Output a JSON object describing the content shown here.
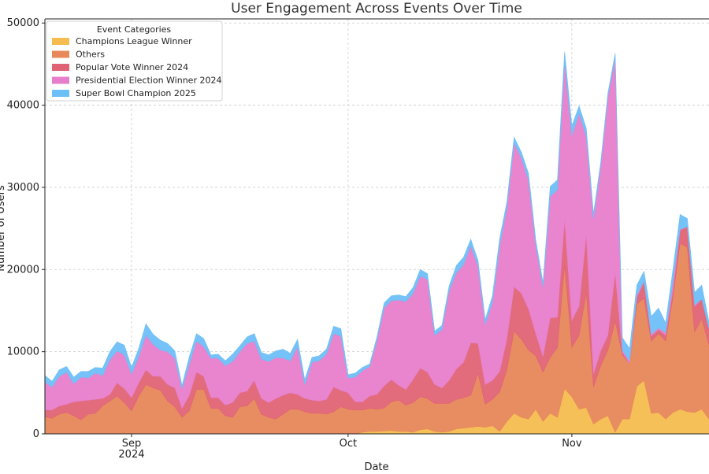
{
  "chart_data": {
    "type": "area",
    "stacked": true,
    "title": "User Engagement Across Events Over Time",
    "xlabel": "Date",
    "ylabel": "Number of Users",
    "x_start": "2024-08-20",
    "x_end": "2024-11-20",
    "x_ticks": [
      {
        "date": "2024-09-01",
        "label": "Sep",
        "sublabel": "2024"
      },
      {
        "date": "2024-10-01",
        "label": "Oct",
        "sublabel": ""
      },
      {
        "date": "2024-11-01",
        "label": "Nov",
        "sublabel": ""
      }
    ],
    "ylim": [
      0,
      50500
    ],
    "y_ticks": [
      0,
      10000,
      20000,
      30000,
      40000,
      50000
    ],
    "y_tick_labels": [
      "0",
      "10000",
      "20000",
      "30000",
      "40000",
      "50000"
    ],
    "grid": true,
    "legend": {
      "title": "Event Categories",
      "position": "top-left"
    },
    "dates": [
      "2024-08-20",
      "2024-08-21",
      "2024-08-22",
      "2024-08-23",
      "2024-08-24",
      "2024-08-25",
      "2024-08-26",
      "2024-08-27",
      "2024-08-28",
      "2024-08-29",
      "2024-08-30",
      "2024-08-31",
      "2024-09-01",
      "2024-09-02",
      "2024-09-03",
      "2024-09-04",
      "2024-09-05",
      "2024-09-06",
      "2024-09-07",
      "2024-09-08",
      "2024-09-09",
      "2024-09-10",
      "2024-09-11",
      "2024-09-12",
      "2024-09-13",
      "2024-09-14",
      "2024-09-15",
      "2024-09-16",
      "2024-09-17",
      "2024-09-18",
      "2024-09-19",
      "2024-09-20",
      "2024-09-21",
      "2024-09-22",
      "2024-09-23",
      "2024-09-24",
      "2024-09-25",
      "2024-09-26",
      "2024-09-27",
      "2024-09-28",
      "2024-09-29",
      "2024-09-30",
      "2024-10-01",
      "2024-10-02",
      "2024-10-03",
      "2024-10-04",
      "2024-10-05",
      "2024-10-06",
      "2024-10-07",
      "2024-10-08",
      "2024-10-09",
      "2024-10-10",
      "2024-10-11",
      "2024-10-12",
      "2024-10-13",
      "2024-10-14",
      "2024-10-15",
      "2024-10-16",
      "2024-10-17",
      "2024-10-18",
      "2024-10-19",
      "2024-10-20",
      "2024-10-21",
      "2024-10-22",
      "2024-10-23",
      "2024-10-24",
      "2024-10-25",
      "2024-10-26",
      "2024-10-27",
      "2024-10-28",
      "2024-10-29",
      "2024-10-30",
      "2024-10-31",
      "2024-11-01",
      "2024-11-02",
      "2024-11-03",
      "2024-11-04",
      "2024-11-05",
      "2024-11-06",
      "2024-11-07",
      "2024-11-08",
      "2024-11-09",
      "2024-11-10",
      "2024-11-11",
      "2024-11-12",
      "2024-11-13",
      "2024-11-14",
      "2024-11-15",
      "2024-11-16",
      "2024-11-17",
      "2024-11-18",
      "2024-11-19",
      "2024-11-20"
    ],
    "series": [
      {
        "name": "Champions League Winner",
        "color": "#f5bd4f",
        "values": [
          0,
          0,
          0,
          0,
          0,
          0,
          0,
          0,
          0,
          0,
          0,
          0,
          0,
          0,
          0,
          0,
          0,
          0,
          0,
          0,
          0,
          0,
          0,
          0,
          0,
          0,
          0,
          0,
          0,
          0,
          0,
          0,
          0,
          0,
          0,
          0,
          0,
          0,
          0,
          0,
          0,
          0,
          0,
          0,
          200,
          300,
          300,
          350,
          400,
          300,
          300,
          200,
          500,
          600,
          300,
          200,
          300,
          600,
          700,
          800,
          900,
          800,
          1000,
          300,
          1500,
          2500,
          2000,
          1800,
          3000,
          1500,
          2500,
          2000,
          5500,
          4500,
          3000,
          3200,
          1200,
          1800,
          2200,
          200,
          1800,
          1800,
          5800,
          6500,
          2500,
          2600,
          1800,
          2600,
          3000,
          2700,
          2600,
          3000,
          1800
        ]
      },
      {
        "name": "Others",
        "color": "#e7875a",
        "values": [
          2100,
          1900,
          2400,
          2600,
          2200,
          1700,
          2400,
          2500,
          3400,
          4000,
          4600,
          3800,
          2800,
          4600,
          6000,
          5600,
          5300,
          4000,
          3300,
          2000,
          2800,
          5400,
          5400,
          3100,
          3100,
          2200,
          2000,
          3300,
          3400,
          4300,
          2400,
          2000,
          1800,
          2400,
          3000,
          3000,
          2700,
          2500,
          2500,
          2400,
          2700,
          3300,
          3000,
          2900,
          2700,
          2800,
          2700,
          2800,
          3500,
          3800,
          3200,
          3600,
          4000,
          3700,
          3400,
          3500,
          3400,
          3600,
          3700,
          3900,
          6500,
          2800,
          3200,
          4800,
          6300,
          10000,
          9500,
          8400,
          6500,
          6000,
          6800,
          8500,
          15000,
          6000,
          9000,
          14000,
          4500,
          6500,
          8000,
          13500,
          7800,
          6800,
          10000,
          10000,
          8800,
          9600,
          9500,
          14000,
          20200,
          20000,
          9800,
          11000,
          9000
        ]
      },
      {
        "name": "Popular Vote Winner 2024",
        "color": "#e06375",
        "values": [
          800,
          1000,
          1000,
          1000,
          1700,
          2300,
          1700,
          1700,
          900,
          800,
          1600,
          1700,
          1600,
          1600,
          1800,
          1400,
          1700,
          2000,
          2300,
          1100,
          1900,
          2100,
          1600,
          1300,
          1300,
          1300,
          1800,
          1700,
          1800,
          2200,
          1900,
          1800,
          2500,
          2300,
          2000,
          1800,
          1600,
          1600,
          1500,
          1800,
          3000,
          2000,
          2000,
          1000,
          1000,
          1500,
          1800,
          2700,
          2700,
          1800,
          1900,
          2800,
          3500,
          3200,
          2300,
          1900,
          2800,
          3700,
          4300,
          6400,
          3600,
          2400,
          2300,
          2500,
          3700,
          5400,
          5600,
          5000,
          2700,
          1900,
          4800,
          3700,
          5500,
          3300,
          3500,
          7000,
          1600,
          1800,
          1800,
          5900,
          300,
          0,
          800,
          2000,
          600,
          500,
          700,
          800,
          1600,
          2500,
          3100,
          2400,
          2000
        ]
      },
      {
        "name": "Presidential Election Winner 2024",
        "color": "#e77ecb",
        "values": [
          3400,
          2800,
          3600,
          3900,
          2200,
          2900,
          2700,
          3200,
          2800,
          4200,
          3900,
          4100,
          2900,
          3200,
          4200,
          3900,
          3200,
          4000,
          3600,
          2400,
          3800,
          3800,
          3600,
          4800,
          4800,
          4800,
          5000,
          5000,
          5800,
          4800,
          4800,
          5000,
          5000,
          4500,
          3900,
          5800,
          1700,
          4600,
          4900,
          5500,
          6500,
          6600,
          1800,
          3000,
          3800,
          3600,
          6600,
          9500,
          9600,
          10400,
          10700,
          10500,
          11200,
          11300,
          6000,
          7100,
          10900,
          11700,
          11900,
          11800,
          9400,
          7300,
          9500,
          15300,
          16000,
          17500,
          16500,
          15700,
          10800,
          8500,
          14800,
          15500,
          19300,
          22500,
          23500,
          12000,
          18900,
          22500,
          29000,
          26200,
          300,
          300,
          300,
          100,
          200,
          200,
          300,
          1100,
          100,
          0,
          200,
          0,
          0
        ]
      },
      {
        "name": "Super Bowl Champion 2025",
        "color": "#6dbff7",
        "values": [
          800,
          700,
          800,
          700,
          800,
          700,
          800,
          700,
          900,
          1000,
          1100,
          1200,
          800,
          1000,
          1400,
          1200,
          1200,
          1000,
          900,
          400,
          900,
          900,
          1000,
          400,
          500,
          600,
          900,
          700,
          800,
          900,
          800,
          800,
          800,
          1100,
          900,
          900,
          600,
          600,
          600,
          600,
          900,
          900,
          400,
          500,
          400,
          300,
          400,
          600,
          600,
          600,
          600,
          700,
          800,
          700,
          500,
          500,
          600,
          900,
          900,
          800,
          700,
          600,
          800,
          900,
          700,
          700,
          700,
          800,
          600,
          500,
          1200,
          1200,
          1200,
          1200,
          900,
          1000,
          600,
          500,
          500,
          500,
          1500,
          1500,
          1200,
          1200,
          2200,
          2400,
          1200,
          1500,
          1800,
          1000,
          1500,
          1700,
          800
        ]
      }
    ]
  }
}
